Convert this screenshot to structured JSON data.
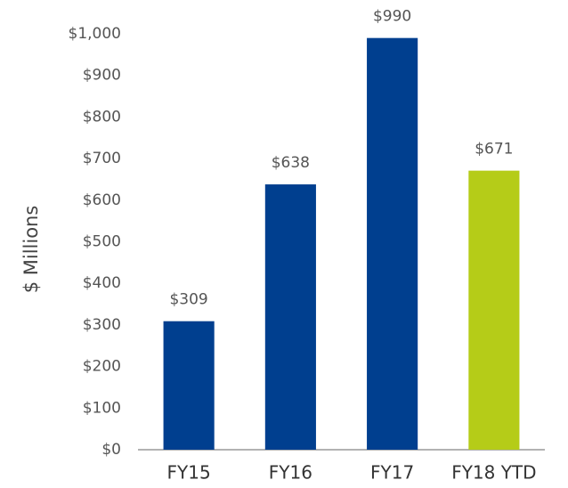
{
  "chart_data": {
    "type": "bar",
    "y_axis_label": "$ Millions",
    "categories": [
      "FY15",
      "FY16",
      "FY17",
      "FY18 YTD"
    ],
    "values": [
      309,
      638,
      990,
      671
    ],
    "value_labels": [
      "$309",
      "$638",
      "$990",
      "$671"
    ],
    "colors": [
      "#003f8f",
      "#003f8f",
      "#003f8f",
      "#b5cc18"
    ],
    "ylim": [
      0,
      1000
    ],
    "yticks": [
      {
        "value": 0,
        "label": "$0"
      },
      {
        "value": 100,
        "label": "$100"
      },
      {
        "value": 200,
        "label": "$200"
      },
      {
        "value": 300,
        "label": "$300"
      },
      {
        "value": 400,
        "label": "$400"
      },
      {
        "value": 500,
        "label": "$500"
      },
      {
        "value": 600,
        "label": "$600"
      },
      {
        "value": 700,
        "label": "$700"
      },
      {
        "value": 800,
        "label": "$800"
      },
      {
        "value": 900,
        "label": "$900"
      },
      {
        "value": 1000,
        "label": "$1,000"
      }
    ],
    "grid": false
  }
}
